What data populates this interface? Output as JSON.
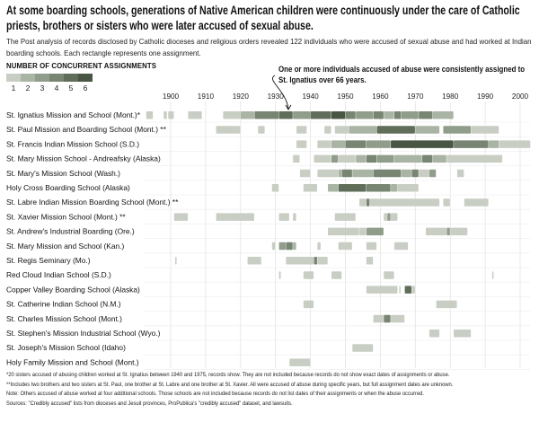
{
  "title": "At some boarding schools, generations of Native American children were continuously under the care of Catholic priests, brothers or sisters who were later accused of sexual abuse.",
  "subtitle": "The Post analysis of records disclosed by Catholic dioceses and religious orders revealed 122 individuals who were accused of sexual abuse and had worked at Indian boarding schools. Each rectangle represents one assignment.",
  "annotation": "One or more individuals accused of abuse were consistently assigned to St. Ignatius over 66 years.",
  "footnotes": [
    "*20 sisters accused of abusing children worked at St. Ignatius between 1940 and 1975, records show. They are not included because records do not show exact dates of assignments or abuse.",
    "**Includes two brothers and two sisters at St. Paul, one brother at St. Labre and one brother at St. Xavier. All were accused of abuse during specific years, but full assignment dates are unknown.",
    "Note: Others accused of abuse worked at four additional schools. Those schools are not included because records do not list dates of their assignments or when the abuse occurred.",
    "Sources: \"Credibly accused\" lists from dioceses and Jesuit provinces, ProPublica's \"credibly accused\" dataset, and lawsuits."
  ],
  "chart_data": {
    "type": "heatmap",
    "legend": {
      "title": "NUMBER OF CONCURRENT ASSIGNMENTS",
      "levels": [
        "1",
        "2",
        "3",
        "4",
        "5",
        "6"
      ],
      "colors": [
        "#c8cec3",
        "#aab4a5",
        "#909d8a",
        "#778572",
        "#5f6d59",
        "#495644"
      ]
    },
    "xlim": [
      1890,
      2003
    ],
    "x_ticks": [
      "1900",
      "1910",
      "1920",
      "1930",
      "1940",
      "1950",
      "1960",
      "1970",
      "1980",
      "1990",
      "2000"
    ],
    "grid": true,
    "rows": [
      {
        "school": "St. Ignatius Mission and School (Mont.)*",
        "segments": [
          [
            1893,
            1895,
            1
          ],
          [
            1898,
            1899,
            1
          ],
          [
            1899.3,
            1901,
            1
          ],
          [
            1905,
            1909,
            1
          ],
          [
            1915,
            1920,
            1
          ],
          [
            1920,
            1924,
            2
          ],
          [
            1924,
            1931,
            4
          ],
          [
            1931,
            1935,
            5
          ],
          [
            1935,
            1940,
            3
          ],
          [
            1940,
            1946,
            5
          ],
          [
            1946,
            1950,
            6
          ],
          [
            1950,
            1953,
            4
          ],
          [
            1953,
            1958,
            3
          ],
          [
            1958,
            1961,
            4
          ],
          [
            1961,
            1964,
            2
          ],
          [
            1964,
            1966,
            4
          ],
          [
            1966,
            1971,
            3
          ],
          [
            1971,
            1975,
            4
          ],
          [
            1975,
            1981,
            2
          ]
        ]
      },
      {
        "school": "St. Paul Mission and Boarding School (Mont.) **",
        "segments": [
          [
            1913,
            1920,
            1
          ],
          [
            1925,
            1927,
            1
          ],
          [
            1936,
            1939,
            1
          ],
          [
            1944,
            1946,
            1
          ],
          [
            1947,
            1951,
            1
          ],
          [
            1951,
            1959,
            2
          ],
          [
            1959,
            1970,
            5
          ],
          [
            1970,
            1977,
            2
          ],
          [
            1978,
            1986,
            3
          ],
          [
            1986,
            1994,
            1
          ]
        ]
      },
      {
        "school": "St. Francis Indian Mission School (S.D.)",
        "segments": [
          [
            1936,
            1939,
            1
          ],
          [
            1942,
            1946,
            1
          ],
          [
            1946,
            1950,
            2
          ],
          [
            1950,
            1956,
            4
          ],
          [
            1956,
            1963,
            3
          ],
          [
            1963,
            1981,
            6
          ],
          [
            1981,
            1991,
            4
          ],
          [
            1991,
            1994,
            2
          ],
          [
            1994,
            2003,
            1
          ]
        ]
      },
      {
        "school": "St. Mary Mission School - Andreafsky (Alaska)",
        "segments": [
          [
            1935,
            1937,
            1
          ],
          [
            1941,
            1946,
            1
          ],
          [
            1946,
            1948,
            3
          ],
          [
            1948,
            1953,
            1
          ],
          [
            1953,
            1956,
            2
          ],
          [
            1956,
            1959,
            4
          ],
          [
            1959,
            1964,
            3
          ],
          [
            1964,
            1972,
            2
          ],
          [
            1972,
            1975,
            4
          ],
          [
            1975,
            1979,
            2
          ],
          [
            1979,
            1995,
            1
          ]
        ]
      },
      {
        "school": "St. Mary's Mission School (Wash.)",
        "segments": [
          [
            1937,
            1940,
            1
          ],
          [
            1942,
            1948,
            1
          ],
          [
            1948,
            1949,
            2
          ],
          [
            1949,
            1952,
            4
          ],
          [
            1952,
            1958,
            2
          ],
          [
            1958,
            1966,
            4
          ],
          [
            1966,
            1969,
            2
          ],
          [
            1969,
            1971,
            4
          ],
          [
            1971,
            1974,
            1
          ],
          [
            1974,
            1976,
            3
          ],
          [
            1982,
            1984,
            1
          ]
        ]
      },
      {
        "school": "Holy Cross Boarding School (Alaska)",
        "segments": [
          [
            1929,
            1931,
            1
          ],
          [
            1938,
            1942,
            1
          ],
          [
            1945,
            1948,
            2
          ],
          [
            1948,
            1956,
            5
          ],
          [
            1956,
            1963,
            4
          ],
          [
            1963,
            1965,
            2
          ],
          [
            1965,
            1971,
            1
          ]
        ]
      },
      {
        "school": "St. Labre Indian Mission Boarding School (Mont.) **",
        "segments": [
          [
            1954,
            1956,
            1
          ],
          [
            1956,
            1957,
            4
          ],
          [
            1957,
            1977,
            1
          ],
          [
            1978,
            1980,
            1
          ],
          [
            1984,
            1991,
            1
          ]
        ]
      },
      {
        "school": "St. Xavier Mission School (Mont.) **",
        "segments": [
          [
            1901,
            1905,
            1
          ],
          [
            1913,
            1924,
            1
          ],
          [
            1931,
            1934,
            1
          ],
          [
            1935,
            1936,
            1
          ],
          [
            1947,
            1953,
            1
          ],
          [
            1961,
            1962,
            1
          ],
          [
            1962,
            1963,
            3
          ],
          [
            1963,
            1965,
            1
          ]
        ]
      },
      {
        "school": "St. Andrew's Industrial Boarding (Ore.)",
        "segments": [
          [
            1945,
            1954,
            1
          ],
          [
            1954,
            1956,
            1
          ],
          [
            1956,
            1961,
            3
          ],
          [
            1973,
            1979,
            1
          ],
          [
            1979,
            1980,
            3
          ],
          [
            1980,
            1985,
            1
          ]
        ]
      },
      {
        "school": "St. Mary Mission and School (Kan.)",
        "segments": [
          [
            1929,
            1930,
            1
          ],
          [
            1931,
            1933,
            3
          ],
          [
            1933,
            1935,
            4
          ],
          [
            1935,
            1936,
            2
          ],
          [
            1942,
            1943,
            1
          ],
          [
            1948,
            1952,
            1
          ],
          [
            1956,
            1959,
            1
          ],
          [
            1964,
            1968,
            1
          ]
        ]
      },
      {
        "school": "St. Regis Seminary (Mo.)",
        "segments": [
          [
            1901.3,
            1901.8,
            1
          ],
          [
            1922,
            1926,
            1
          ],
          [
            1933,
            1941,
            1
          ],
          [
            1941,
            1942,
            4
          ],
          [
            1942,
            1945,
            1
          ],
          [
            1956,
            1958,
            1
          ]
        ]
      },
      {
        "school": "Red Cloud Indian School (S.D.)",
        "segments": [
          [
            1931,
            1931.6,
            1
          ],
          [
            1938,
            1941,
            1
          ],
          [
            1946,
            1949,
            1
          ],
          [
            1961,
            1964,
            1
          ],
          [
            1992,
            1992.5,
            1
          ]
        ]
      },
      {
        "school": "Copper Valley Boarding School (Alaska)",
        "segments": [
          [
            1956,
            1965,
            1
          ],
          [
            1965.4,
            1965.8,
            1
          ],
          [
            1967,
            1969,
            5
          ],
          [
            1969,
            1970,
            1
          ]
        ]
      },
      {
        "school": "St. Catherine Indian School (N.M.)",
        "segments": [
          [
            1938,
            1941,
            1
          ],
          [
            1976,
            1982,
            1
          ]
        ]
      },
      {
        "school": "St. Charles Mission School (Mont.)",
        "segments": [
          [
            1958,
            1961,
            1
          ],
          [
            1961,
            1963,
            4
          ],
          [
            1963,
            1967,
            1
          ]
        ]
      },
      {
        "school": "St. Stephen's Mission Industrial School (Wyo.)",
        "segments": [
          [
            1974,
            1977,
            1
          ],
          [
            1981,
            1986,
            1
          ]
        ]
      },
      {
        "school": "St. Joseph's Mission School (Idaho)",
        "segments": [
          [
            1952,
            1958,
            1
          ]
        ]
      },
      {
        "school": "Holy Family Mission and School (Mont.)",
        "segments": [
          [
            1934,
            1940,
            1
          ]
        ]
      }
    ]
  }
}
